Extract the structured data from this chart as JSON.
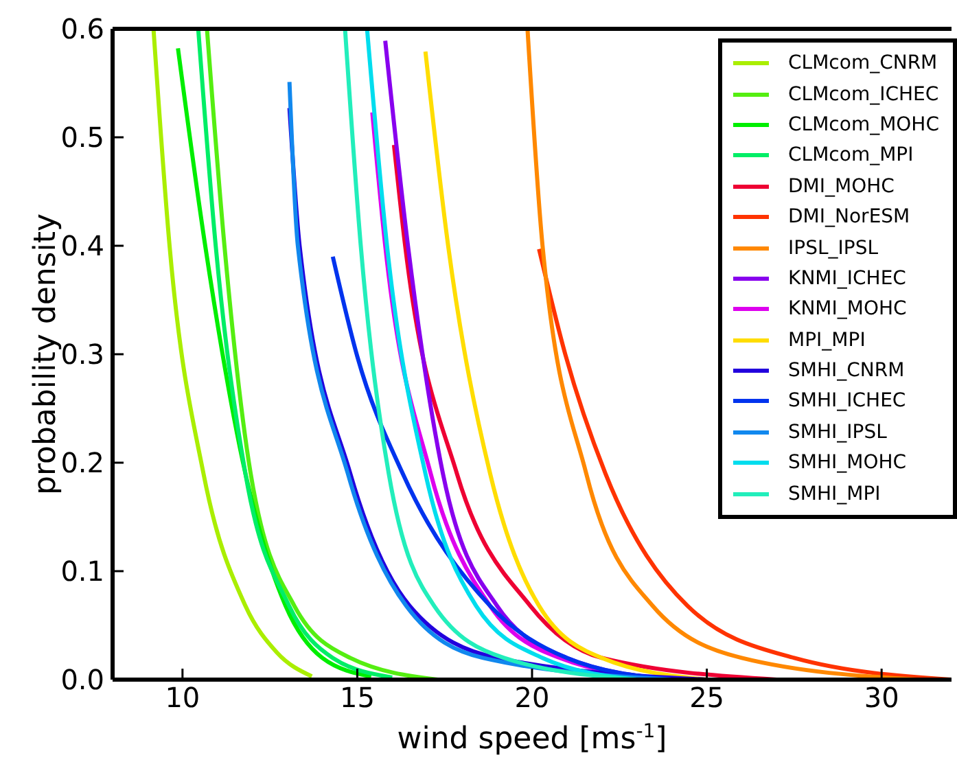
{
  "chart_data": {
    "type": "line",
    "xlabel": "wind speed [ms$^{-1}$]",
    "ylabel": "probability density",
    "xlim": [
      8,
      32
    ],
    "ylim": [
      0,
      0.6
    ],
    "xticks": [
      10,
      15,
      20,
      25,
      30
    ],
    "yticks": [
      {
        "value": 0,
        "label": "0.0"
      },
      {
        "value": 0.1,
        "label": "0.1"
      },
      {
        "value": 0.2,
        "label": "0.2"
      },
      {
        "value": 0.3,
        "label": "0.3"
      },
      {
        "value": 0.4,
        "label": "0.4"
      },
      {
        "value": 0.5,
        "label": "0.5"
      },
      {
        "value": 0.6,
        "label": "0.6"
      }
    ],
    "grid": false,
    "legend": "top right",
    "marker": "none",
    "line_style": "solid",
    "series": [
      {
        "name": "CLMcom_CNRM",
        "color": "#aaee00",
        "x": [
          9.17,
          9.63,
          10.6,
          11.8,
          12.7,
          13.7
        ],
        "values": [
          0.6,
          0.4,
          0.19,
          0.068,
          0.025,
          0.003
        ]
      },
      {
        "name": "CLMcom_ICHEC",
        "color": "#55ee11",
        "x": [
          10.7,
          11.2,
          11.95,
          13.2,
          14.8,
          17.3
        ],
        "values": [
          0.6,
          0.4,
          0.19,
          0.068,
          0.02,
          0.0
        ]
      },
      {
        "name": "CLMcom_MOHC",
        "color": "#00ee00",
        "x": [
          9.87,
          10.65,
          11.8,
          12.95,
          14.0,
          15.4
        ],
        "values": [
          0.582,
          0.4,
          0.19,
          0.068,
          0.02,
          0.003
        ]
      },
      {
        "name": "CLMcom_MPI",
        "color": "#00ee66",
        "x": [
          10.45,
          10.95,
          11.8,
          13.05,
          14.3,
          16.0
        ],
        "values": [
          0.6,
          0.4,
          0.19,
          0.068,
          0.02,
          0.002
        ]
      },
      {
        "name": "DMI_MOHC",
        "color": "#ee0033",
        "x": [
          16.05,
          16.37,
          17.85,
          19.95,
          22.0,
          27.0
        ],
        "values": [
          0.493,
          0.4,
          0.19,
          0.068,
          0.02,
          0.0
        ]
      },
      {
        "name": "DMI_NorESM",
        "color": "#ff3300",
        "x": [
          20.2,
          20.95,
          22.1,
          24.45,
          27.5,
          32.0
        ],
        "values": [
          0.397,
          0.3,
          0.19,
          0.068,
          0.02,
          0.0
        ]
      },
      {
        "name": "IPSL_IPSL",
        "color": "#ff8800",
        "x": [
          19.87,
          20.3,
          21.55,
          23.45,
          26.0,
          31.0
        ],
        "values": [
          0.6,
          0.4,
          0.19,
          0.068,
          0.02,
          0.0
        ]
      },
      {
        "name": "KNMI_ICHEC",
        "color": "#8800ee",
        "x": [
          15.8,
          16.45,
          17.45,
          19.0,
          21.0,
          24.0
        ],
        "values": [
          0.589,
          0.4,
          0.19,
          0.068,
          0.02,
          0.0
        ]
      },
      {
        "name": "KNMI_MOHC",
        "color": "#dd00ee",
        "x": [
          15.43,
          15.8,
          17.1,
          18.8,
          20.8,
          24.0
        ],
        "values": [
          0.523,
          0.4,
          0.19,
          0.068,
          0.02,
          0.0
        ]
      },
      {
        "name": "MPI_MPI",
        "color": "#ffdd00",
        "x": [
          16.95,
          17.6,
          18.8,
          20.2,
          22.0,
          25.0
        ],
        "values": [
          0.579,
          0.4,
          0.19,
          0.068,
          0.02,
          0.0
        ]
      },
      {
        "name": "SMHI_CNRM",
        "color": "#2200dd",
        "x": [
          13.06,
          13.35,
          14.8,
          16.5,
          19.0,
          25.0
        ],
        "values": [
          0.527,
          0.4,
          0.19,
          0.068,
          0.02,
          0.0
        ]
      },
      {
        "name": "SMHI_ICHEC",
        "color": "#0033ee",
        "x": [
          14.3,
          15.0,
          16.3,
          18.8,
          21.0,
          24.0
        ],
        "values": [
          0.39,
          0.298,
          0.19,
          0.068,
          0.02,
          0.0
        ]
      },
      {
        "name": "SMHI_IPSL",
        "color": "#1188ee",
        "x": [
          13.06,
          13.3,
          14.73,
          16.4,
          18.6,
          24.0
        ],
        "values": [
          0.551,
          0.4,
          0.19,
          0.068,
          0.02,
          0.0
        ]
      },
      {
        "name": "SMHI_MOHC",
        "color": "#00ddee",
        "x": [
          15.28,
          15.85,
          16.95,
          18.4,
          20.3,
          23.0
        ],
        "values": [
          0.6,
          0.4,
          0.19,
          0.068,
          0.02,
          0.0
        ]
      },
      {
        "name": "SMHI_MPI",
        "color": "#22eebb",
        "x": [
          14.65,
          15.1,
          15.9,
          17.2,
          19.2,
          23.0
        ],
        "values": [
          0.6,
          0.4,
          0.19,
          0.068,
          0.02,
          0.0
        ]
      }
    ]
  }
}
